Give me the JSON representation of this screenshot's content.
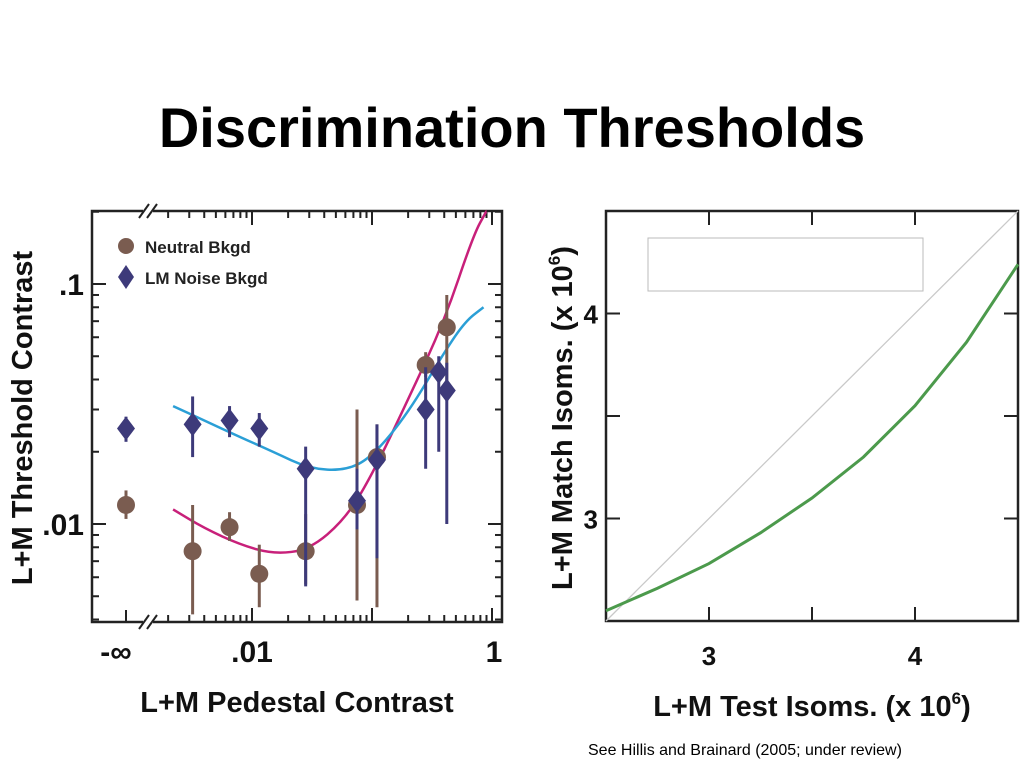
{
  "title": "Discrimination Thresholds",
  "citation": "See Hillis and Brainard (2005; under review)",
  "chart_data": [
    {
      "type": "scatter",
      "xlabel": "L+M Pedestal Contrast",
      "ylabel": "L+M Threshold Contrast",
      "xscale": "log",
      "yscale": "log",
      "xlim": [
        0.002,
        1.2
      ],
      "ylim": [
        0.0045,
        0.2
      ],
      "x_ticks": [
        "-∞",
        ".01",
        "1"
      ],
      "y_ticks": [
        ".1",
        ".01"
      ],
      "x_axis_break": "between -∞ and 0.002",
      "legend_position": "top-left",
      "legend_marker_colors": {
        "neutral": "#7a5c50",
        "lm": "#3d3a7a"
      },
      "series": [
        {
          "name": "Neutral Bkgd",
          "marker": "circle",
          "color": "#7a5c50",
          "points": [
            {
              "x": "-∞",
              "y": 0.012,
              "err": [
                0.0105,
                0.0138
              ]
            },
            {
              "x": 0.0032,
              "y": 0.0077,
              "err": [
                0.0042,
                0.012
              ]
            },
            {
              "x": 0.0065,
              "y": 0.0097,
              "err": [
                0.0085,
                0.0112
              ]
            },
            {
              "x": 0.0115,
              "y": 0.0062,
              "err": [
                0.0045,
                0.0082
              ]
            },
            {
              "x": 0.028,
              "y": 0.0077,
              "err": [
                0.0056,
                0.011
              ]
            },
            {
              "x": 0.075,
              "y": 0.012,
              "err": [
                0.0048,
                0.03
              ]
            },
            {
              "x": 0.11,
              "y": 0.019,
              "err": [
                0.0045,
                0.026
              ]
            },
            {
              "x": 0.28,
              "y": 0.046,
              "err": [
                0.041,
                0.052
              ]
            },
            {
              "x": 0.42,
              "y": 0.066,
              "err": [
                0.035,
                0.09
              ]
            }
          ]
        },
        {
          "name": "LM Noise Bkgd",
          "marker": "diamond",
          "color": "#3d3a7a",
          "points": [
            {
              "x": "-∞",
              "y": 0.025,
              "err": [
                0.022,
                0.028
              ]
            },
            {
              "x": 0.0032,
              "y": 0.026,
              "err": [
                0.019,
                0.034
              ]
            },
            {
              "x": 0.0065,
              "y": 0.027,
              "err": [
                0.023,
                0.031
              ]
            },
            {
              "x": 0.0115,
              "y": 0.025,
              "err": [
                0.021,
                0.029
              ]
            },
            {
              "x": 0.028,
              "y": 0.017,
              "err": [
                0.0055,
                0.021
              ]
            },
            {
              "x": 0.075,
              "y": 0.0125,
              "err": [
                0.0095,
                0.017
              ]
            },
            {
              "x": 0.11,
              "y": 0.0185,
              "err": [
                0.0072,
                0.026
              ]
            },
            {
              "x": 0.28,
              "y": 0.03,
              "err": [
                0.017,
                0.045
              ]
            },
            {
              "x": 0.36,
              "y": 0.043,
              "err": [
                0.02,
                0.05
              ]
            },
            {
              "x": 0.42,
              "y": 0.036,
              "err": [
                0.01,
                0.047
              ]
            }
          ]
        }
      ],
      "fit_curves": [
        {
          "color": "#c8207a",
          "points": [
            [
              0.0022,
              0.0115
            ],
            [
              0.004,
              0.0096
            ],
            [
              0.008,
              0.0082
            ],
            [
              0.015,
              0.0075
            ],
            [
              0.03,
              0.0078
            ],
            [
              0.06,
              0.0105
            ],
            [
              0.1,
              0.016
            ],
            [
              0.2,
              0.033
            ],
            [
              0.4,
              0.07
            ],
            [
              0.7,
              0.16
            ],
            [
              0.9,
              0.21
            ]
          ]
        },
        {
          "color": "#2b9fd6",
          "points": [
            [
              0.0022,
              0.031
            ],
            [
              0.004,
              0.027
            ],
            [
              0.008,
              0.023
            ],
            [
              0.015,
              0.02
            ],
            [
              0.03,
              0.017
            ],
            [
              0.06,
              0.0167
            ],
            [
              0.1,
              0.019
            ],
            [
              0.2,
              0.029
            ],
            [
              0.4,
              0.052
            ],
            [
              0.6,
              0.07
            ],
            [
              0.85,
              0.08
            ]
          ]
        }
      ]
    },
    {
      "type": "line",
      "xlabel": "L+M Test Isoms. (x 10^6)",
      "ylabel": "L+M Match Isoms. (x 10^6)",
      "xlim": [
        2.5,
        4.5
      ],
      "ylim": [
        2.5,
        4.5
      ],
      "x_ticks": [
        "3",
        "4"
      ],
      "y_ticks": [
        "3",
        "4"
      ],
      "series": [
        {
          "style": "identity",
          "color": "#c9c9c9",
          "points": [
            [
              2.5,
              2.5
            ],
            [
              4.5,
              4.5
            ]
          ]
        },
        {
          "color": "#4c9a4c",
          "points": [
            [
              2.5,
              2.55
            ],
            [
              2.75,
              2.66
            ],
            [
              3.0,
              2.78
            ],
            [
              3.25,
              2.93
            ],
            [
              3.5,
              3.1
            ],
            [
              3.75,
              3.3
            ],
            [
              4.0,
              3.55
            ],
            [
              4.25,
              3.86
            ],
            [
              4.5,
              4.24
            ]
          ]
        }
      ]
    }
  ]
}
